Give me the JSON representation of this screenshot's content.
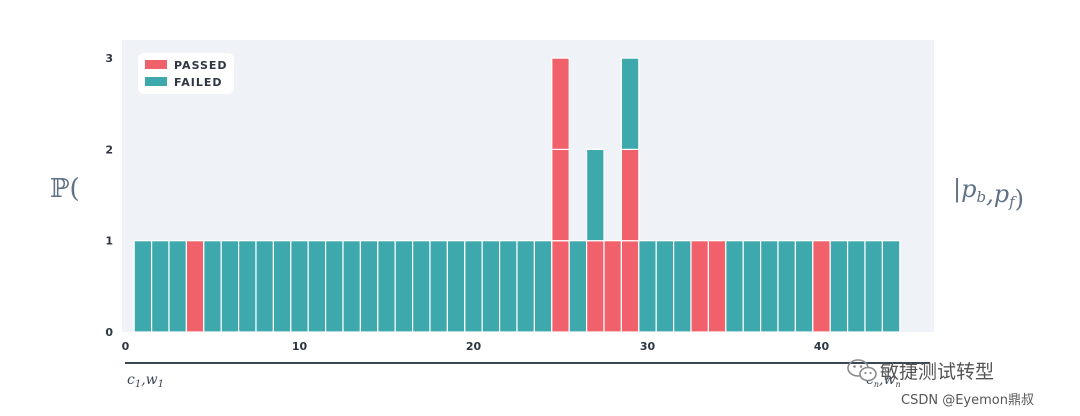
{
  "chart_data": {
    "type": "bar",
    "stacked": true,
    "legend_placement": "top-left",
    "grid": false,
    "background": "#eff2f7",
    "x_ticks": [
      0,
      10,
      20,
      30,
      40
    ],
    "y_ticks": [
      0,
      1,
      2,
      3
    ],
    "ylim": [
      0,
      3
    ],
    "xlim": [
      0,
      45
    ],
    "series": [
      {
        "name": "PASSED",
        "color": "#f0616b"
      },
      {
        "name": "FAILED",
        "color": "#3ea9ad"
      }
    ],
    "bars": [
      {
        "x": 1,
        "stack": [
          "FAILED"
        ]
      },
      {
        "x": 2,
        "stack": [
          "FAILED"
        ]
      },
      {
        "x": 3,
        "stack": [
          "FAILED"
        ]
      },
      {
        "x": 4,
        "stack": [
          "PASSED"
        ]
      },
      {
        "x": 5,
        "stack": [
          "FAILED"
        ]
      },
      {
        "x": 6,
        "stack": [
          "FAILED"
        ]
      },
      {
        "x": 7,
        "stack": [
          "FAILED"
        ]
      },
      {
        "x": 8,
        "stack": [
          "FAILED"
        ]
      },
      {
        "x": 9,
        "stack": [
          "FAILED"
        ]
      },
      {
        "x": 10,
        "stack": [
          "FAILED"
        ]
      },
      {
        "x": 11,
        "stack": [
          "FAILED"
        ]
      },
      {
        "x": 12,
        "stack": [
          "FAILED"
        ]
      },
      {
        "x": 13,
        "stack": [
          "FAILED"
        ]
      },
      {
        "x": 14,
        "stack": [
          "FAILED"
        ]
      },
      {
        "x": 15,
        "stack": [
          "FAILED"
        ]
      },
      {
        "x": 16,
        "stack": [
          "FAILED"
        ]
      },
      {
        "x": 17,
        "stack": [
          "FAILED"
        ]
      },
      {
        "x": 18,
        "stack": [
          "FAILED"
        ]
      },
      {
        "x": 19,
        "stack": [
          "FAILED"
        ]
      },
      {
        "x": 20,
        "stack": [
          "FAILED"
        ]
      },
      {
        "x": 21,
        "stack": [
          "FAILED"
        ]
      },
      {
        "x": 22,
        "stack": [
          "FAILED"
        ]
      },
      {
        "x": 23,
        "stack": [
          "FAILED"
        ]
      },
      {
        "x": 24,
        "stack": [
          "FAILED"
        ]
      },
      {
        "x": 25,
        "stack": [
          "PASSED",
          "PASSED",
          "PASSED"
        ]
      },
      {
        "x": 26,
        "stack": [
          "FAILED"
        ]
      },
      {
        "x": 27,
        "stack": [
          "PASSED",
          "FAILED"
        ]
      },
      {
        "x": 28,
        "stack": [
          "PASSED"
        ]
      },
      {
        "x": 29,
        "stack": [
          "PASSED",
          "PASSED",
          "FAILED"
        ]
      },
      {
        "x": 30,
        "stack": [
          "FAILED"
        ]
      },
      {
        "x": 31,
        "stack": [
          "FAILED"
        ]
      },
      {
        "x": 32,
        "stack": [
          "FAILED"
        ]
      },
      {
        "x": 33,
        "stack": [
          "PASSED"
        ]
      },
      {
        "x": 34,
        "stack": [
          "PASSED"
        ]
      },
      {
        "x": 35,
        "stack": [
          "FAILED"
        ]
      },
      {
        "x": 36,
        "stack": [
          "FAILED"
        ]
      },
      {
        "x": 37,
        "stack": [
          "FAILED"
        ]
      },
      {
        "x": 38,
        "stack": [
          "FAILED"
        ]
      },
      {
        "x": 39,
        "stack": [
          "FAILED"
        ]
      },
      {
        "x": 40,
        "stack": [
          "PASSED"
        ]
      },
      {
        "x": 41,
        "stack": [
          "FAILED"
        ]
      },
      {
        "x": 42,
        "stack": [
          "FAILED"
        ]
      },
      {
        "x": 43,
        "stack": [
          "FAILED"
        ]
      },
      {
        "x": 44,
        "stack": [
          "FAILED"
        ]
      }
    ],
    "left_label": "ℙ(",
    "right_label": "|p_b,p_f)",
    "bottom_left_label": "c_1,w_1",
    "bottom_right_label": "c_n,w_n"
  },
  "watermark": {
    "icon": "wechat-icon",
    "text": "敏捷测试转型",
    "credit": "CSDN @Eyemon鼎叔"
  }
}
